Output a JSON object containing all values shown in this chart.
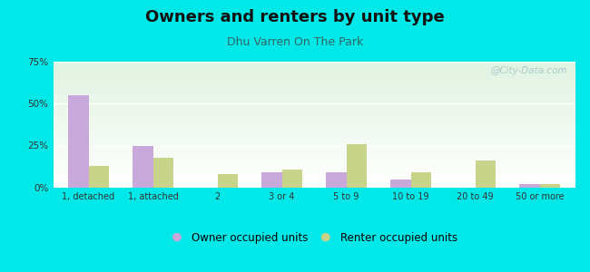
{
  "title": "Owners and renters by unit type",
  "subtitle": "Dhu Varren On The Park",
  "categories": [
    "1, detached",
    "1, attached",
    "2",
    "3 or 4",
    "5 to 9",
    "10 to 19",
    "20 to 49",
    "50 or more"
  ],
  "owner_values": [
    55,
    25,
    0,
    9,
    9,
    5,
    0,
    2
  ],
  "renter_values": [
    13,
    18,
    8,
    11,
    26,
    9,
    16,
    2
  ],
  "owner_color": "#c9a8dc",
  "renter_color": "#c8d48a",
  "ylim": [
    0,
    75
  ],
  "yticks": [
    0,
    25,
    50,
    75
  ],
  "ytick_labels": [
    "0%",
    "25%",
    "50%",
    "75%"
  ],
  "background_color": "#00e8e8",
  "legend_owner": "Owner occupied units",
  "legend_renter": "Renter occupied units",
  "bar_width": 0.32,
  "title_fontsize": 13,
  "subtitle_fontsize": 9,
  "subtitle_color": "#336666",
  "watermark": "@City-Data.com",
  "watermark_color": "#aacccc"
}
